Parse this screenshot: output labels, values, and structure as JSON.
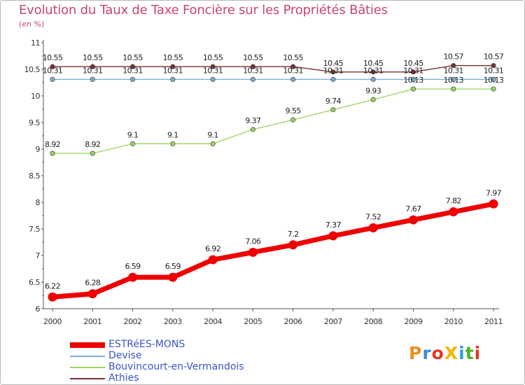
{
  "title": "Evolution du Taux de Taxe Foncière sur les Propriétés Bâties",
  "unit_label": "(en %)",
  "logo": {
    "text": "ProXiti",
    "letter_colors": [
      "#f08c1e",
      "#3a8ad6",
      "#e8361e",
      "#f2b705",
      "#2e9bd6",
      "#4caf2a",
      "#e8361e"
    ]
  },
  "chart_data": {
    "type": "line",
    "x": [
      "2000",
      "2001",
      "2002",
      "2003",
      "2004",
      "2005",
      "2006",
      "2007",
      "2008",
      "2009",
      "2010",
      "2011"
    ],
    "ylim": [
      6,
      11
    ],
    "yticks": [
      "6",
      "6.5",
      "7",
      "7.5",
      "8",
      "8.5",
      "9",
      "9.5",
      "10",
      "10.5",
      "11"
    ],
    "grid": false,
    "legend_position": "bottom-left",
    "series": [
      {
        "name": "ESTRéES-MONS",
        "color": "#ee0000",
        "values": [
          6.22,
          6.28,
          6.59,
          6.59,
          6.92,
          7.06,
          7.2,
          7.37,
          7.52,
          7.67,
          7.82,
          7.97
        ],
        "labels": [
          "6.22",
          "6.28",
          "6.59",
          "6.59",
          "6.92",
          "7.06",
          "7.2",
          "7.37",
          "7.52",
          "7.67",
          "7.82",
          "7.97"
        ]
      },
      {
        "name": "Devise",
        "color": "#7aaed8",
        "values": [
          10.31,
          10.31,
          10.31,
          10.31,
          10.31,
          10.31,
          10.31,
          10.31,
          10.31,
          10.31,
          10.31,
          10.31
        ],
        "labels": [
          "10.31",
          "10.31",
          "10.31",
          "10.31",
          "10.31",
          "10.31",
          "10.31",
          "10.31",
          "10.31",
          "10.31",
          "10.31",
          "10.31"
        ]
      },
      {
        "name": "Bouvincourt-en-Vermandois",
        "color": "#99d45e",
        "values": [
          8.92,
          8.92,
          9.1,
          9.1,
          9.1,
          9.37,
          9.55,
          9.74,
          9.93,
          10.13,
          10.13,
          10.13
        ],
        "labels": [
          "8.92",
          "8.92",
          "9.1",
          "9.1",
          "9.1",
          "9.37",
          "9.55",
          "9.74",
          "9.93",
          "10.13",
          "10.13",
          "10.13"
        ]
      },
      {
        "name": "Athies",
        "color": "#7a2e35",
        "values": [
          10.55,
          10.55,
          10.55,
          10.55,
          10.55,
          10.55,
          10.55,
          10.45,
          10.45,
          10.45,
          10.57,
          10.57
        ],
        "labels": [
          "10.55",
          "10.55",
          "10.55",
          "10.55",
          "10.55",
          "10.55",
          "10.55",
          "10.45",
          "10.45",
          "10.45",
          "10.57",
          "10.57"
        ]
      }
    ]
  }
}
